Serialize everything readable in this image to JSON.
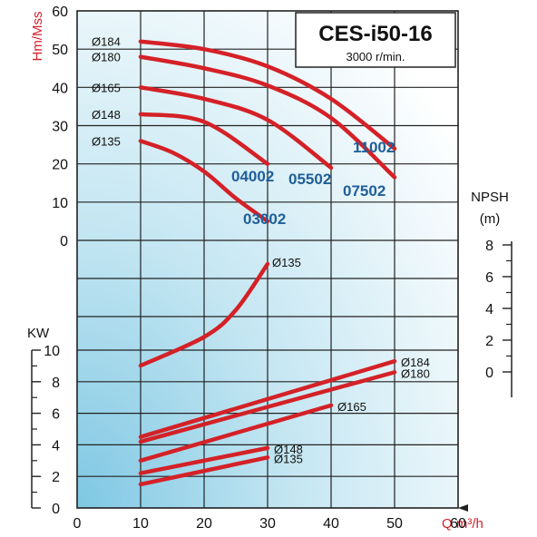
{
  "chart_data": {
    "type": "line",
    "title": "CES-i50-16",
    "subtitle": "3000 r/min.",
    "xlabel": "Q m³/h",
    "x_ticks": [
      "0",
      "10",
      "20",
      "30",
      "40",
      "50",
      "60"
    ],
    "xlim": [
      0,
      60
    ],
    "grid": true,
    "colors": {
      "curve": "#d42127",
      "model": "#1f5f9a",
      "axis_title": "#d4202a",
      "grid": "#222222"
    },
    "head": {
      "ylabel": "Hm/Mss",
      "ylim": [
        0,
        60
      ],
      "y_ticks": [
        "0",
        "10",
        "20",
        "30",
        "40",
        "50",
        "60"
      ],
      "series": [
        {
          "name": "Ø184",
          "model": "11002",
          "x": [
            10,
            20,
            30,
            40,
            50
          ],
          "y": [
            52,
            50,
            45.5,
            37,
            24
          ]
        },
        {
          "name": "Ø180",
          "model": "07502",
          "x": [
            10,
            20,
            30,
            40,
            50
          ],
          "y": [
            48,
            45,
            40.5,
            32,
            16.5
          ]
        },
        {
          "name": "Ø165",
          "model": "05502",
          "x": [
            10,
            20,
            30,
            40
          ],
          "y": [
            40,
            37,
            31.5,
            19
          ]
        },
        {
          "name": "Ø148",
          "model": "04002",
          "x": [
            10,
            20,
            30
          ],
          "y": [
            33,
            31,
            20
          ]
        },
        {
          "name": "Ø135",
          "model": "03002",
          "x": [
            10,
            15,
            20,
            25,
            30
          ],
          "y": [
            26,
            23,
            18,
            11,
            5
          ]
        }
      ]
    },
    "npsh": {
      "ylabel": "NPSH (m)",
      "ylim": [
        0,
        8
      ],
      "y_ticks": [
        "0",
        "2",
        "4",
        "6",
        "8"
      ],
      "series": [
        {
          "name": "Ø135",
          "x": [
            10,
            20,
            25,
            30
          ],
          "y": [
            0.4,
            2.2,
            3.9,
            6.8
          ]
        }
      ]
    },
    "power": {
      "ylabel": "KW",
      "ylim": [
        0,
        10
      ],
      "y_ticks": [
        "0",
        "2",
        "4",
        "6",
        "8",
        "10"
      ],
      "series": [
        {
          "name": "Ø184",
          "x": [
            10,
            50
          ],
          "y": [
            4.5,
            9.3
          ]
        },
        {
          "name": "Ø180",
          "x": [
            10,
            50
          ],
          "y": [
            4.2,
            8.6
          ]
        },
        {
          "name": "Ø165",
          "x": [
            10,
            40
          ],
          "y": [
            3.0,
            6.5
          ]
        },
        {
          "name": "Ø148",
          "x": [
            10,
            30
          ],
          "y": [
            2.2,
            3.8
          ]
        },
        {
          "name": "Ø135",
          "x": [
            10,
            30
          ],
          "y": [
            1.5,
            3.2
          ]
        }
      ]
    }
  }
}
